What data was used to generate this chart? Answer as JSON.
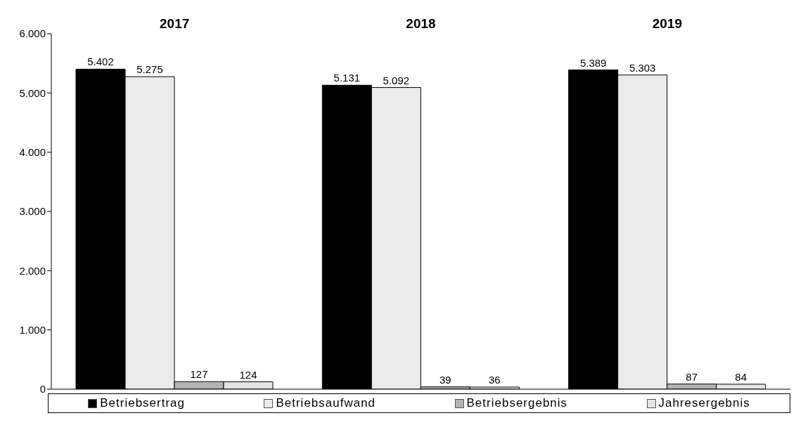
{
  "chart_data": {
    "type": "bar",
    "categories": [
      "2017",
      "2018",
      "2019"
    ],
    "series": [
      {
        "name": "Betriebsertrag",
        "color": "#000000",
        "values": [
          5402,
          5131,
          5389
        ],
        "value_labels": [
          "5.402",
          "5.131",
          "5.389"
        ]
      },
      {
        "name": "Betriebsaufwand",
        "color": "#eaeaea",
        "values": [
          5275,
          5092,
          5303
        ],
        "value_labels": [
          "5.275",
          "5.092",
          "5.303"
        ]
      },
      {
        "name": "Betriebsergebnis",
        "color": "#b4b4b4",
        "values": [
          127,
          39,
          87
        ],
        "value_labels": [
          "127",
          "39",
          "87"
        ]
      },
      {
        "name": "Jahresergebnis",
        "color": "#e4e4e4",
        "values": [
          124,
          36,
          84
        ],
        "value_labels": [
          "124",
          "36",
          "84"
        ]
      }
    ],
    "ylim": [
      0,
      6000
    ],
    "yticks": [
      0,
      {
        "value": 1000,
        "label": "1.000"
      },
      {
        "value": 2000,
        "label": "2.000"
      },
      {
        "value": 3000,
        "label": "3.000"
      },
      {
        "value": 4000,
        "label": "4.000"
      },
      {
        "value": 5000,
        "label": "5.000"
      },
      {
        "value": 6000,
        "label": "6.000"
      }
    ],
    "grid": false,
    "legend": "bottom"
  }
}
